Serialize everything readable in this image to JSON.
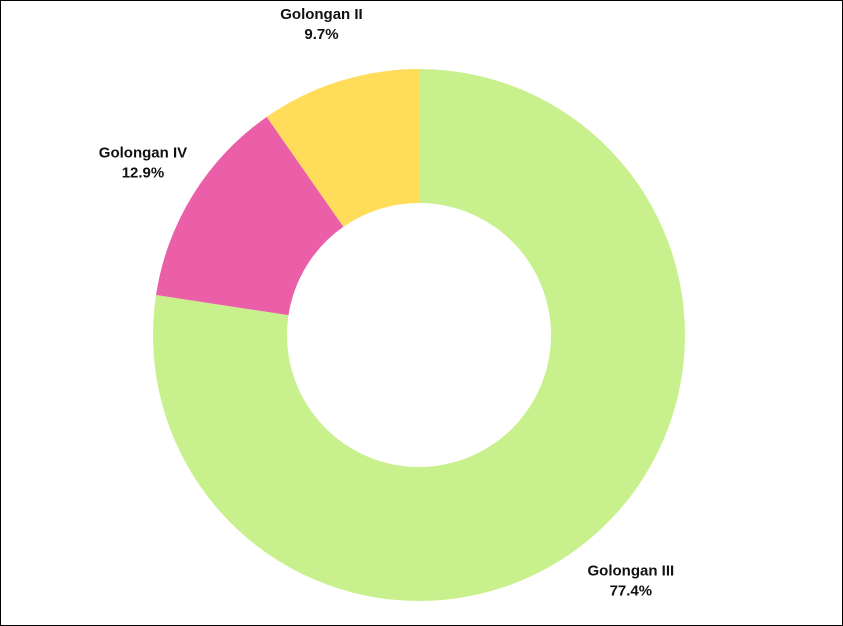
{
  "chart_data": {
    "type": "donut",
    "categories": [
      "Golongan III",
      "Golongan IV",
      "Golongan II"
    ],
    "values": [
      77.4,
      12.9,
      9.7
    ],
    "value_labels": [
      "77.4%",
      "12.9%",
      "9.7%"
    ],
    "colors": [
      "#c8f08c",
      "#eb5fa9",
      "#ffdc5a"
    ]
  }
}
